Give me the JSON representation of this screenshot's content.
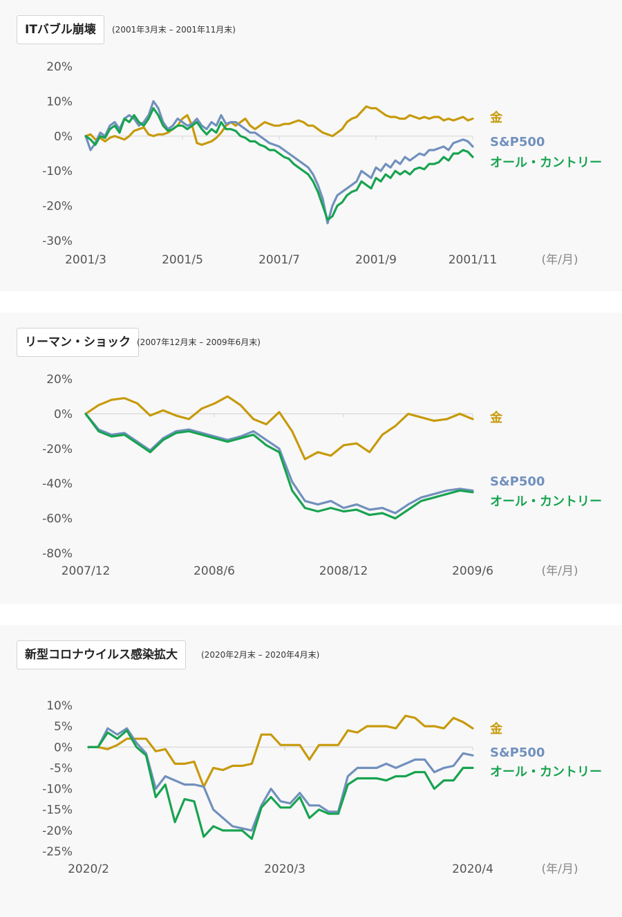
{
  "colors": {
    "gold": "#c79a0c",
    "sp500": "#7190bd",
    "allcountry": "#18a350",
    "zero_line": "#d8d8d8"
  },
  "unit_label": "(年/月)",
  "chart_data": [
    {
      "type": "line",
      "title": "ITバブル崩壊",
      "period": "(2001年3月末 – 2001年11月末)",
      "yticks": [
        "20%",
        "10%",
        "0%",
        "-10%",
        "-20%",
        "-30%"
      ],
      "ylim": [
        -30,
        20
      ],
      "xticks": [
        "2001/3",
        "2001/5",
        "2001/7",
        "2001/9",
        "2001/11"
      ],
      "series": [
        {
          "name": "金",
          "key": "gold",
          "x": [
            0,
            0.05,
            0.1,
            0.15,
            0.2,
            0.25,
            0.3,
            0.35,
            0.4,
            0.45,
            0.5,
            0.55,
            0.6,
            0.65,
            0.7,
            0.75,
            0.8,
            0.85,
            0.9,
            0.95,
            1.0,
            1.05,
            1.1,
            1.15,
            1.2,
            1.25,
            1.3,
            1.35,
            1.4,
            1.45,
            1.5,
            1.55,
            1.6,
            1.65,
            1.7,
            1.75,
            1.8,
            1.85,
            1.9,
            1.95,
            2.0,
            2.05,
            2.1,
            2.15,
            2.2,
            2.25,
            2.3,
            2.35,
            2.4,
            2.45,
            2.5,
            2.55,
            2.6,
            2.65,
            2.7,
            2.75,
            2.8,
            2.85,
            2.9,
            2.95,
            3.0,
            3.05,
            3.1,
            3.15,
            3.2,
            3.25,
            3.3,
            3.35,
            3.4,
            3.45,
            3.5,
            3.55,
            3.6,
            3.65,
            3.7,
            3.75,
            3.8,
            3.85,
            3.9,
            3.95,
            4.0
          ],
          "values": [
            0,
            0.5,
            -1,
            -0.5,
            -1.5,
            -0.5,
            0,
            -0.5,
            -1,
            0,
            1.5,
            2,
            2.5,
            0.5,
            0,
            0.5,
            0.5,
            1,
            2,
            3,
            5,
            6,
            3,
            -2,
            -2.5,
            -2,
            -1.5,
            -0.5,
            1,
            3,
            4,
            3,
            4,
            5,
            3,
            2,
            3,
            4,
            3.5,
            3,
            3,
            3.5,
            3.5,
            4,
            4.5,
            4,
            3,
            3,
            2,
            1,
            0.5,
            0,
            1,
            2,
            4,
            5,
            5.5,
            7,
            8.5,
            8,
            8,
            7,
            6,
            5.5,
            5.5,
            5,
            5,
            6,
            5.5,
            5,
            5.5,
            5,
            5.5,
            5.5,
            4.5,
            5,
            4.5,
            5,
            5.5,
            4.5,
            5
          ]
        },
        {
          "name": "S&P500",
          "key": "sp500",
          "x": [
            0,
            0.05,
            0.1,
            0.15,
            0.2,
            0.25,
            0.3,
            0.35,
            0.4,
            0.45,
            0.5,
            0.55,
            0.6,
            0.65,
            0.7,
            0.75,
            0.8,
            0.85,
            0.9,
            0.95,
            1.0,
            1.05,
            1.1,
            1.15,
            1.2,
            1.25,
            1.3,
            1.35,
            1.4,
            1.45,
            1.5,
            1.55,
            1.6,
            1.65,
            1.7,
            1.75,
            1.8,
            1.85,
            1.9,
            1.95,
            2.0,
            2.05,
            2.1,
            2.15,
            2.2,
            2.25,
            2.3,
            2.35,
            2.4,
            2.45,
            2.5,
            2.55,
            2.6,
            2.65,
            2.7,
            2.75,
            2.8,
            2.85,
            2.9,
            2.95,
            3.0,
            3.05,
            3.1,
            3.15,
            3.2,
            3.25,
            3.3,
            3.35,
            3.4,
            3.45,
            3.5,
            3.55,
            3.6,
            3.65,
            3.7,
            3.75,
            3.8,
            3.85,
            3.9,
            3.95,
            4.0
          ],
          "values": [
            0,
            -4,
            -2,
            1,
            0,
            3,
            4,
            2,
            5,
            6,
            5,
            3,
            4,
            6,
            10,
            8,
            4,
            2,
            3,
            5,
            4,
            3,
            3.5,
            5,
            3,
            2,
            4,
            3,
            6,
            3.5,
            4,
            4,
            3,
            2,
            1,
            1,
            0,
            -1,
            -2,
            -2.5,
            -3,
            -4,
            -5,
            -6,
            -7,
            -8,
            -9,
            -11,
            -14,
            -18,
            -25,
            -20,
            -17,
            -16,
            -15,
            -14,
            -13,
            -10,
            -11,
            -12,
            -9,
            -10,
            -8,
            -9,
            -7,
            -8,
            -6,
            -7,
            -6,
            -5,
            -5.5,
            -4,
            -4,
            -3.5,
            -3,
            -4,
            -2,
            -1.5,
            -1,
            -1.5,
            -3
          ]
        },
        {
          "name": "オール・カントリー",
          "key": "allcountry",
          "x": [
            0,
            0.05,
            0.1,
            0.15,
            0.2,
            0.25,
            0.3,
            0.35,
            0.4,
            0.45,
            0.5,
            0.55,
            0.6,
            0.65,
            0.7,
            0.75,
            0.8,
            0.85,
            0.9,
            0.95,
            1.0,
            1.05,
            1.1,
            1.15,
            1.2,
            1.25,
            1.3,
            1.35,
            1.4,
            1.45,
            1.5,
            1.55,
            1.6,
            1.65,
            1.7,
            1.75,
            1.8,
            1.85,
            1.9,
            1.95,
            2.0,
            2.05,
            2.1,
            2.15,
            2.2,
            2.25,
            2.3,
            2.35,
            2.4,
            2.45,
            2.5,
            2.55,
            2.6,
            2.65,
            2.7,
            2.75,
            2.8,
            2.85,
            2.9,
            2.95,
            3.0,
            3.05,
            3.1,
            3.15,
            3.2,
            3.25,
            3.3,
            3.35,
            3.4,
            3.45,
            3.5,
            3.55,
            3.6,
            3.65,
            3.7,
            3.75,
            3.8,
            3.85,
            3.9,
            3.95,
            4.0
          ],
          "values": [
            0,
            -1,
            -2.5,
            0,
            -0.5,
            2,
            3,
            1,
            5,
            4,
            6,
            4,
            3,
            5,
            8,
            6,
            3,
            1.5,
            2,
            3,
            3,
            2,
            3,
            4,
            2,
            0.5,
            2,
            1,
            4,
            2,
            2,
            1.5,
            0,
            -0.5,
            -1.5,
            -1.5,
            -2.5,
            -3,
            -4,
            -4,
            -5,
            -6,
            -6.5,
            -8,
            -9,
            -10,
            -11,
            -13,
            -16,
            -20,
            -24,
            -23,
            -20,
            -19,
            -17,
            -16,
            -15.5,
            -13,
            -14,
            -15,
            -12,
            -13,
            -11,
            -12,
            -10,
            -11,
            -10,
            -11,
            -9.5,
            -9,
            -9.5,
            -8,
            -8,
            -7.5,
            -6,
            -7,
            -5,
            -5,
            -4,
            -4.5,
            -6
          ]
        }
      ]
    },
    {
      "type": "line",
      "title": "リーマン・ショック",
      "period": "(2007年12月末 – 2009年6月末)",
      "yticks": [
        "20%",
        "0%",
        "-20%",
        "-40%",
        "-60%",
        "-80%"
      ],
      "ylim": [
        -80,
        20
      ],
      "xticks": [
        "2007/12",
        "2008/6",
        "2008/12",
        "2009/6"
      ],
      "series": [
        {
          "name": "金",
          "key": "gold",
          "x": [
            0,
            0.1,
            0.2,
            0.3,
            0.4,
            0.5,
            0.6,
            0.7,
            0.8,
            0.9,
            1.0,
            1.1,
            1.2,
            1.3,
            1.4,
            1.5,
            1.6,
            1.7,
            1.8,
            1.9,
            2.0,
            2.1,
            2.2,
            2.3,
            2.4,
            2.5,
            2.6,
            2.7,
            2.8,
            2.9,
            3.0
          ],
          "values": [
            0,
            5,
            8,
            9,
            6,
            -1,
            2,
            -1,
            -3,
            3,
            6,
            10,
            5,
            -3,
            -6,
            1,
            -10,
            -26,
            -22,
            -24,
            -18,
            -17,
            -22,
            -12,
            -7,
            0,
            -2,
            -4,
            -3,
            0,
            -3
          ]
        },
        {
          "name": "S&P500",
          "key": "sp500",
          "x": [
            0,
            0.1,
            0.2,
            0.3,
            0.4,
            0.5,
            0.6,
            0.7,
            0.8,
            0.9,
            1.0,
            1.1,
            1.2,
            1.3,
            1.4,
            1.5,
            1.6,
            1.7,
            1.8,
            1.9,
            2.0,
            2.1,
            2.2,
            2.3,
            2.4,
            2.5,
            2.6,
            2.7,
            2.8,
            2.9,
            3.0
          ],
          "values": [
            0,
            -9,
            -12,
            -11,
            -16,
            -21,
            -14,
            -10,
            -9,
            -11,
            -13,
            -15,
            -13,
            -10,
            -15,
            -20,
            -39,
            -50,
            -52,
            -50,
            -54,
            -52,
            -55,
            -54,
            -57,
            -52,
            -48,
            -46,
            -44,
            -43,
            -44
          ]
        },
        {
          "name": "オール・カントリー",
          "key": "allcountry",
          "x": [
            0,
            0.1,
            0.2,
            0.3,
            0.4,
            0.5,
            0.6,
            0.7,
            0.8,
            0.9,
            1.0,
            1.1,
            1.2,
            1.3,
            1.4,
            1.5,
            1.6,
            1.7,
            1.8,
            1.9,
            2.0,
            2.1,
            2.2,
            2.3,
            2.4,
            2.5,
            2.6,
            2.7,
            2.8,
            2.9,
            3.0
          ],
          "values": [
            0,
            -10,
            -13,
            -12,
            -17,
            -22,
            -15,
            -11,
            -10,
            -12,
            -14,
            -16,
            -14,
            -12,
            -18,
            -22,
            -44,
            -54,
            -56,
            -54,
            -56,
            -55,
            -58,
            -57,
            -60,
            -55,
            -50,
            -48,
            -46,
            -44,
            -45
          ]
        }
      ]
    },
    {
      "type": "line",
      "title": "新型コロナウイルス感染拡大",
      "period": "(2020年2月末 – 2020年4月末)",
      "yticks": [
        "10%",
        "5%",
        "0%",
        "-5%",
        "-10%",
        "-15%",
        "-20%",
        "-25%"
      ],
      "ylim": [
        -25,
        10
      ],
      "xticks": [
        "2020/2",
        "2020/3",
        "2020/4"
      ],
      "series": [
        {
          "name": "金",
          "key": "gold",
          "x": [
            0,
            0.05,
            0.1,
            0.15,
            0.2,
            0.25,
            0.3,
            0.35,
            0.4,
            0.45,
            0.5,
            0.55,
            0.6,
            0.65,
            0.7,
            0.75,
            0.8,
            0.85,
            0.9,
            0.95,
            1.0,
            1.05,
            1.1,
            1.15,
            1.2,
            1.25,
            1.3,
            1.35,
            1.4,
            1.45,
            1.5,
            1.55,
            1.6,
            1.65,
            1.7,
            1.75,
            1.8,
            1.85,
            1.9,
            1.95,
            2.0
          ],
          "values": [
            0,
            0,
            -0.5,
            0.5,
            2,
            2,
            2,
            -1,
            -0.5,
            -4,
            -4,
            -3.5,
            -9.5,
            -5,
            -5.5,
            -4.5,
            -4.5,
            -4,
            3,
            3,
            0.5,
            0.5,
            0.5,
            -3,
            0.5,
            0.5,
            0.5,
            4,
            3.5,
            5,
            5,
            5,
            4.5,
            7.5,
            7,
            5,
            5,
            4.5,
            7,
            6,
            4.5
          ]
        },
        {
          "name": "S&P500",
          "key": "sp500",
          "x": [
            0,
            0.05,
            0.1,
            0.15,
            0.2,
            0.25,
            0.3,
            0.35,
            0.4,
            0.45,
            0.5,
            0.55,
            0.6,
            0.65,
            0.7,
            0.75,
            0.8,
            0.85,
            0.9,
            0.95,
            1.0,
            1.05,
            1.1,
            1.15,
            1.2,
            1.25,
            1.3,
            1.35,
            1.4,
            1.45,
            1.5,
            1.55,
            1.6,
            1.65,
            1.7,
            1.75,
            1.8,
            1.85,
            1.9,
            1.95,
            2.0
          ],
          "values": [
            0,
            0,
            4.5,
            3,
            4.5,
            1,
            -1.5,
            -10,
            -7,
            -8,
            -9,
            -9,
            -9.5,
            -15,
            -17,
            -19,
            -19.5,
            -20,
            -14,
            -10,
            -13,
            -13.5,
            -11,
            -14,
            -14,
            -15.5,
            -15.5,
            -7,
            -5,
            -5,
            -5,
            -4,
            -5,
            -4,
            -3,
            -3,
            -6,
            -5,
            -4.5,
            -1.5,
            -2
          ]
        },
        {
          "name": "オール・カントリー",
          "key": "allcountry",
          "x": [
            0,
            0.05,
            0.1,
            0.15,
            0.2,
            0.25,
            0.3,
            0.35,
            0.4,
            0.45,
            0.5,
            0.55,
            0.6,
            0.65,
            0.7,
            0.75,
            0.8,
            0.85,
            0.9,
            0.95,
            1.0,
            1.05,
            1.1,
            1.15,
            1.2,
            1.25,
            1.3,
            1.35,
            1.4,
            1.45,
            1.5,
            1.55,
            1.6,
            1.65,
            1.7,
            1.75,
            1.8,
            1.85,
            1.9,
            1.95,
            2.0
          ],
          "values": [
            0,
            0,
            3.5,
            2,
            4,
            0,
            -2,
            -12,
            -9,
            -18,
            -12.5,
            -13,
            -21.5,
            -19,
            -20,
            -20,
            -20,
            -22,
            -14.5,
            -12,
            -14.5,
            -14.5,
            -12,
            -17,
            -15,
            -16,
            -16,
            -9,
            -7.5,
            -7.5,
            -7.5,
            -8,
            -7,
            -7,
            -6,
            -6,
            -10,
            -8,
            -8,
            -5,
            -5
          ]
        }
      ]
    }
  ]
}
